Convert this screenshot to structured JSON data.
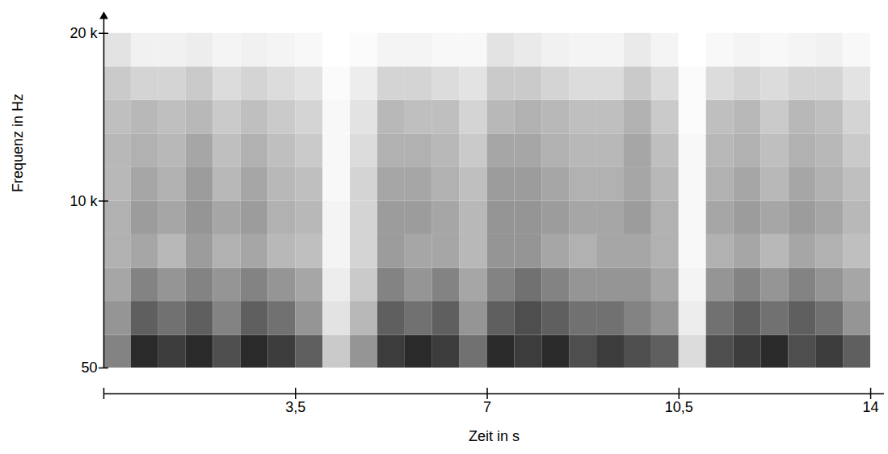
{
  "chart_data": {
    "type": "heatmap",
    "x_label": "Zeit in s",
    "y_label": "Frequenz in Hz",
    "xlim": [
      0,
      14.25
    ],
    "xticks": [
      {
        "value": 3.5,
        "label": "3,5"
      },
      7,
      {
        "value": 10.5,
        "label": "10,5"
      },
      14
    ],
    "ylim": [
      50,
      21000
    ],
    "yticks": [
      50,
      {
        "value": 10000,
        "label": "10 k"
      },
      {
        "value": 20000,
        "label": "20 k"
      }
    ],
    "x_bins": [
      0,
      0.5,
      1,
      1.5,
      2,
      2.5,
      3,
      3.5,
      4,
      4.5,
      5,
      5.5,
      6,
      6.5,
      7,
      7.5,
      8,
      8.5,
      9,
      9.5,
      10,
      10.5,
      11,
      11.5,
      12,
      12.5,
      13,
      13.5,
      14
    ],
    "y_bins": [
      50,
      2000,
      4000,
      6000,
      8000,
      10000,
      12000,
      14000,
      16000,
      18000,
      20000
    ],
    "cells": [
      [
        0.35,
        0.6,
        0.55,
        0.6,
        0.5,
        0.6,
        0.55,
        0.45,
        0.15,
        0.3,
        0.55,
        0.6,
        0.55,
        0.4,
        0.6,
        0.55,
        0.6,
        0.5,
        0.55,
        0.5,
        0.45,
        0.1,
        0.5,
        0.55,
        0.6,
        0.5,
        0.55,
        0.45
      ],
      [
        0.3,
        0.45,
        0.4,
        0.45,
        0.35,
        0.45,
        0.4,
        0.3,
        0.08,
        0.2,
        0.45,
        0.4,
        0.45,
        0.3,
        0.45,
        0.5,
        0.45,
        0.4,
        0.4,
        0.35,
        0.3,
        0.05,
        0.4,
        0.45,
        0.4,
        0.45,
        0.4,
        0.3
      ],
      [
        0.25,
        0.35,
        0.3,
        0.35,
        0.3,
        0.35,
        0.3,
        0.25,
        0.05,
        0.15,
        0.35,
        0.3,
        0.35,
        0.25,
        0.35,
        0.4,
        0.35,
        0.3,
        0.3,
        0.3,
        0.25,
        0.03,
        0.3,
        0.35,
        0.3,
        0.35,
        0.3,
        0.25
      ],
      [
        0.22,
        0.25,
        0.2,
        0.28,
        0.22,
        0.25,
        0.2,
        0.18,
        0.03,
        0.12,
        0.28,
        0.25,
        0.25,
        0.2,
        0.3,
        0.3,
        0.25,
        0.22,
        0.25,
        0.25,
        0.22,
        0.02,
        0.22,
        0.25,
        0.2,
        0.25,
        0.22,
        0.18
      ],
      [
        0.22,
        0.28,
        0.25,
        0.3,
        0.25,
        0.28,
        0.22,
        0.2,
        0.03,
        0.12,
        0.28,
        0.28,
        0.25,
        0.2,
        0.3,
        0.3,
        0.28,
        0.25,
        0.25,
        0.28,
        0.22,
        0.02,
        0.25,
        0.28,
        0.25,
        0.28,
        0.25,
        0.2
      ],
      [
        0.2,
        0.25,
        0.22,
        0.28,
        0.2,
        0.25,
        0.2,
        0.18,
        0.02,
        0.12,
        0.25,
        0.25,
        0.22,
        0.18,
        0.28,
        0.28,
        0.25,
        0.22,
        0.22,
        0.25,
        0.2,
        0.02,
        0.22,
        0.25,
        0.2,
        0.25,
        0.22,
        0.18
      ],
      [
        0.2,
        0.22,
        0.2,
        0.25,
        0.18,
        0.22,
        0.18,
        0.15,
        0.02,
        0.1,
        0.22,
        0.22,
        0.2,
        0.15,
        0.25,
        0.25,
        0.22,
        0.2,
        0.2,
        0.25,
        0.18,
        0.02,
        0.2,
        0.22,
        0.18,
        0.22,
        0.2,
        0.15
      ],
      [
        0.18,
        0.2,
        0.18,
        0.2,
        0.15,
        0.18,
        0.15,
        0.12,
        0.02,
        0.08,
        0.2,
        0.18,
        0.18,
        0.12,
        0.2,
        0.22,
        0.2,
        0.18,
        0.18,
        0.22,
        0.15,
        0.01,
        0.18,
        0.2,
        0.15,
        0.2,
        0.18,
        0.12
      ],
      [
        0.15,
        0.12,
        0.12,
        0.15,
        0.1,
        0.12,
        0.1,
        0.08,
        0.01,
        0.05,
        0.12,
        0.12,
        0.1,
        0.08,
        0.15,
        0.15,
        0.12,
        0.1,
        0.1,
        0.15,
        0.1,
        0.01,
        0.1,
        0.12,
        0.1,
        0.12,
        0.12,
        0.08
      ],
      [
        0.08,
        0.04,
        0.04,
        0.05,
        0.03,
        0.04,
        0.03,
        0.02,
        0,
        0.01,
        0.03,
        0.03,
        0.02,
        0.02,
        0.08,
        0.06,
        0.04,
        0.03,
        0.03,
        0.06,
        0.03,
        0,
        0.02,
        0.03,
        0.02,
        0.03,
        0.04,
        0.02
      ]
    ]
  }
}
